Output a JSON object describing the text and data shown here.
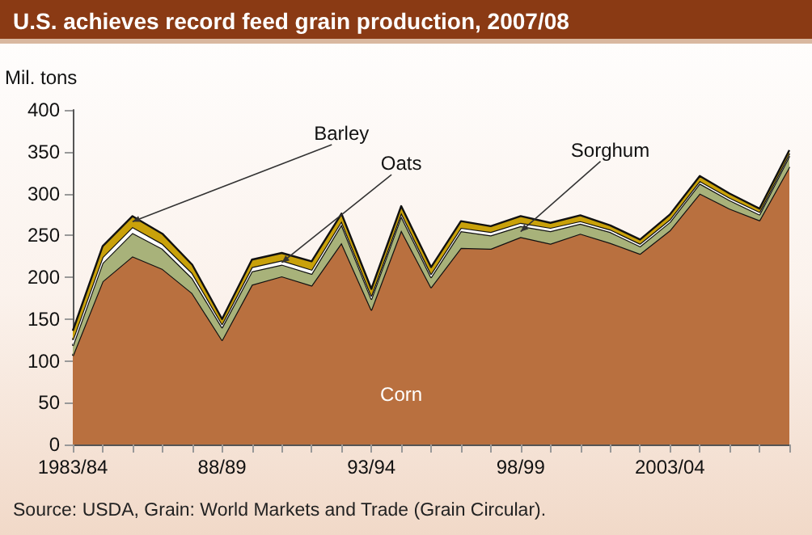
{
  "chart_data": {
    "type": "area",
    "stacked": true,
    "title": "U.S. achieves record feed grain production, 2007/08",
    "ylabel": "Mil. tons",
    "categories": [
      "1983/84",
      null,
      null,
      null,
      null,
      "88/89",
      null,
      null,
      null,
      null,
      "93/94",
      null,
      null,
      null,
      null,
      "98/99",
      null,
      null,
      null,
      null,
      "2003/04",
      null,
      null,
      null,
      null
    ],
    "series": [
      {
        "name": "Corn",
        "color": "#b9703f",
        "values": [
          106,
          195,
          225,
          210,
          181,
          125,
          191,
          201,
          190,
          241,
          161,
          256,
          188,
          235,
          234,
          248,
          240,
          252,
          241,
          228,
          256,
          300,
          282,
          268,
          332
        ]
      },
      {
        "name": "Sorghum",
        "color": "#a8b27a",
        "values": [
          12,
          22,
          28,
          24,
          18,
          15,
          16,
          14,
          14,
          22,
          13,
          17,
          12,
          20,
          16,
          13,
          15,
          12,
          13,
          9,
          10,
          12,
          10,
          7,
          13
        ]
      },
      {
        "name": "Oats",
        "color": "#ffffff",
        "values": [
          7,
          7,
          7,
          6,
          6,
          4,
          5,
          5,
          5,
          4,
          4,
          4,
          4,
          4,
          4,
          4,
          4,
          3,
          3,
          3,
          3,
          3,
          3,
          3,
          3
        ]
      },
      {
        "name": "Barley",
        "color": "#c9a10a",
        "values": [
          11,
          13,
          13,
          12,
          10,
          6,
          9,
          9,
          10,
          9,
          8,
          8,
          8,
          8,
          7,
          8,
          6,
          7,
          5,
          5,
          6,
          6,
          5,
          4,
          4
        ]
      }
    ],
    "ylim": [
      0,
      400
    ],
    "yticks": [
      0,
      50,
      100,
      150,
      200,
      250,
      300,
      350,
      400
    ],
    "grid": false,
    "legend": false,
    "annotations": [
      "Source: USDA, Grain:  World Markets and Trade (Grain Circular)."
    ]
  }
}
